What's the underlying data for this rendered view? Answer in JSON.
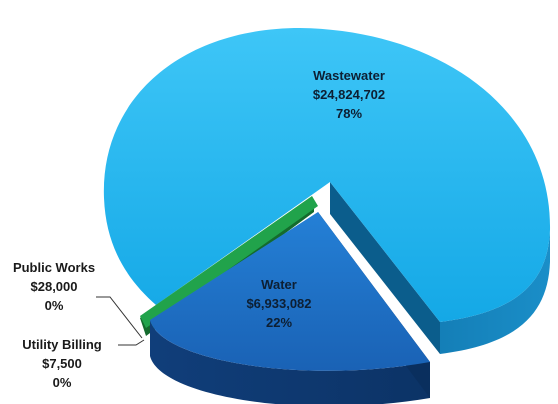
{
  "chart_data": {
    "type": "pie",
    "title": "",
    "slices": [
      {
        "name": "Wastewater",
        "value": 24824702,
        "value_label": "$24,824,702",
        "percent_label": "78%",
        "color": "#1fb4ef"
      },
      {
        "name": "Water",
        "value": 6933082,
        "value_label": "$6,933,082",
        "percent_label": "22%",
        "color": "#1f6fc4"
      },
      {
        "name": "Public Works",
        "value": 28000,
        "value_label": "$28,000",
        "percent_label": "0%",
        "color": "#1f8f3f"
      },
      {
        "name": "Utility Billing",
        "value": 7500,
        "value_label": "$7,500",
        "percent_label": "0%",
        "color": "#1a7fd0"
      }
    ],
    "legend": "none",
    "style": "3d-exploded"
  }
}
